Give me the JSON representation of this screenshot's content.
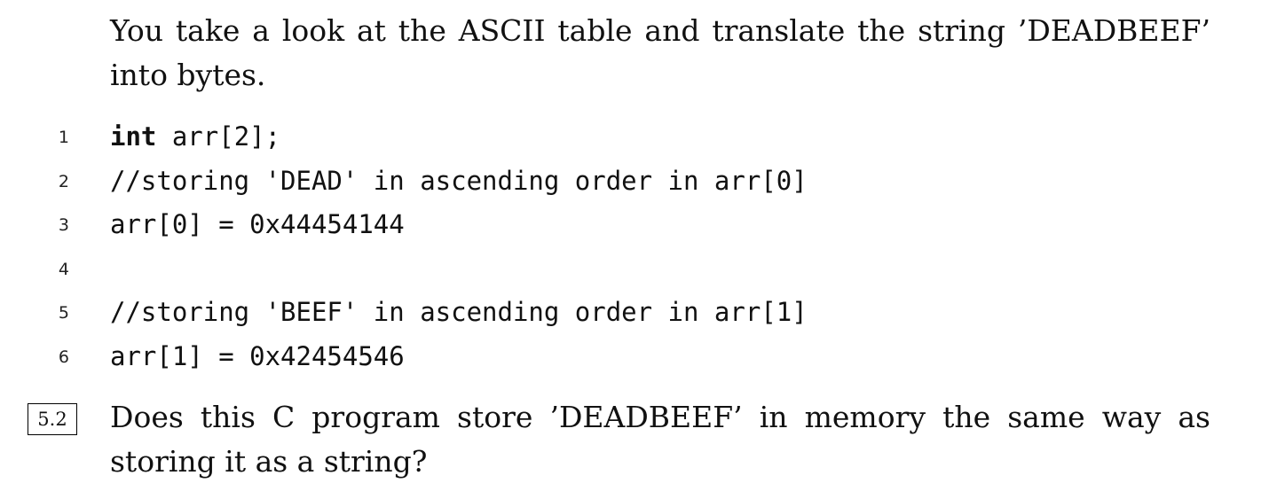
{
  "intro": {
    "text": "You take a look at the ASCII table and translate the string ’DEADBEEF’ into bytes."
  },
  "code": {
    "lines": [
      {
        "number": "1",
        "keyword": "int",
        "rest": " arr[2];"
      },
      {
        "number": "2",
        "keyword": "",
        "rest": "//storing 'DEAD' in ascending order in arr[0]"
      },
      {
        "number": "3",
        "keyword": "",
        "rest": "arr[0] = 0x44454144"
      },
      {
        "number": "4",
        "keyword": "",
        "rest": ""
      },
      {
        "number": "5",
        "keyword": "",
        "rest": "//storing 'BEEF' in ascending order in arr[1]"
      },
      {
        "number": "6",
        "keyword": "",
        "rest": "arr[1] = 0x42454546"
      }
    ]
  },
  "question": {
    "number": "5.2",
    "text": "Does this C program store ’DEADBEEF’ in memory the same way as storing it as a string?"
  }
}
